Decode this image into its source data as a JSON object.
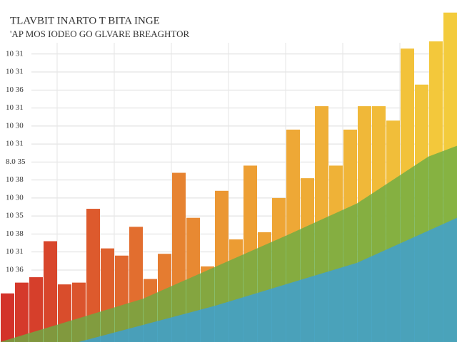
{
  "chart_data": {
    "type": "bar",
    "title": "TLAVBIT INARTO T BITA INGE",
    "subtitle": "'AP MOS IODEO GO GLVARE BREAGHTOR",
    "categories": [
      null,
      null,
      null,
      null,
      null,
      null,
      null,
      null,
      null,
      null,
      null,
      null,
      null,
      null,
      null,
      null,
      null,
      null,
      null,
      null,
      null,
      null,
      null,
      null,
      null,
      null,
      null,
      null,
      null,
      null,
      null,
      null
    ],
    "values": [
      2.7,
      3.3,
      3.6,
      5.6,
      3.2,
      3.3,
      7.4,
      5.2,
      4.8,
      6.4,
      3.5,
      4.9,
      9.4,
      6.9,
      4.2,
      8.4,
      5.7,
      9.8,
      6.1,
      8.0,
      11.8,
      9.1,
      13.1,
      9.8,
      11.8,
      13.1,
      13.1,
      12.3,
      16.3,
      14.3,
      16.7,
      18.3
    ],
    "colors": [
      "#d3322a",
      "#ec9a33",
      "#f3cb3c"
    ],
    "areas": [
      {
        "color": "#6aad44",
        "x": [
          0,
          10,
          20,
          25,
          30,
          32
        ],
        "values": [
          0,
          2.4,
          5.9,
          7.7,
          10.3,
          10.9
        ]
      },
      {
        "color": "#3b9fd8",
        "x": [
          5.5,
          15,
          25,
          32
        ],
        "values": [
          0,
          2.0,
          4.4,
          6.9
        ]
      }
    ],
    "ylim": [
      0,
      19
    ],
    "yticks": [
      {
        "value": 4,
        "label": "10 36"
      },
      {
        "value": 5,
        "label": "10 31"
      },
      {
        "value": 6,
        "label": "10 38"
      },
      {
        "value": 7,
        "label": "10 35"
      },
      {
        "value": 8,
        "label": "10 30"
      },
      {
        "value": 9,
        "label": "10 38"
      },
      {
        "value": 10,
        "label": "8.0 35"
      },
      {
        "value": 11,
        "label": "10 31"
      },
      {
        "value": 12,
        "label": "10 30"
      },
      {
        "value": 13,
        "label": "10 31"
      },
      {
        "value": 14,
        "label": "10 36"
      },
      {
        "value": 15,
        "label": "10 31"
      },
      {
        "value": 16,
        "label": "10 31"
      }
    ],
    "grid": true
  }
}
